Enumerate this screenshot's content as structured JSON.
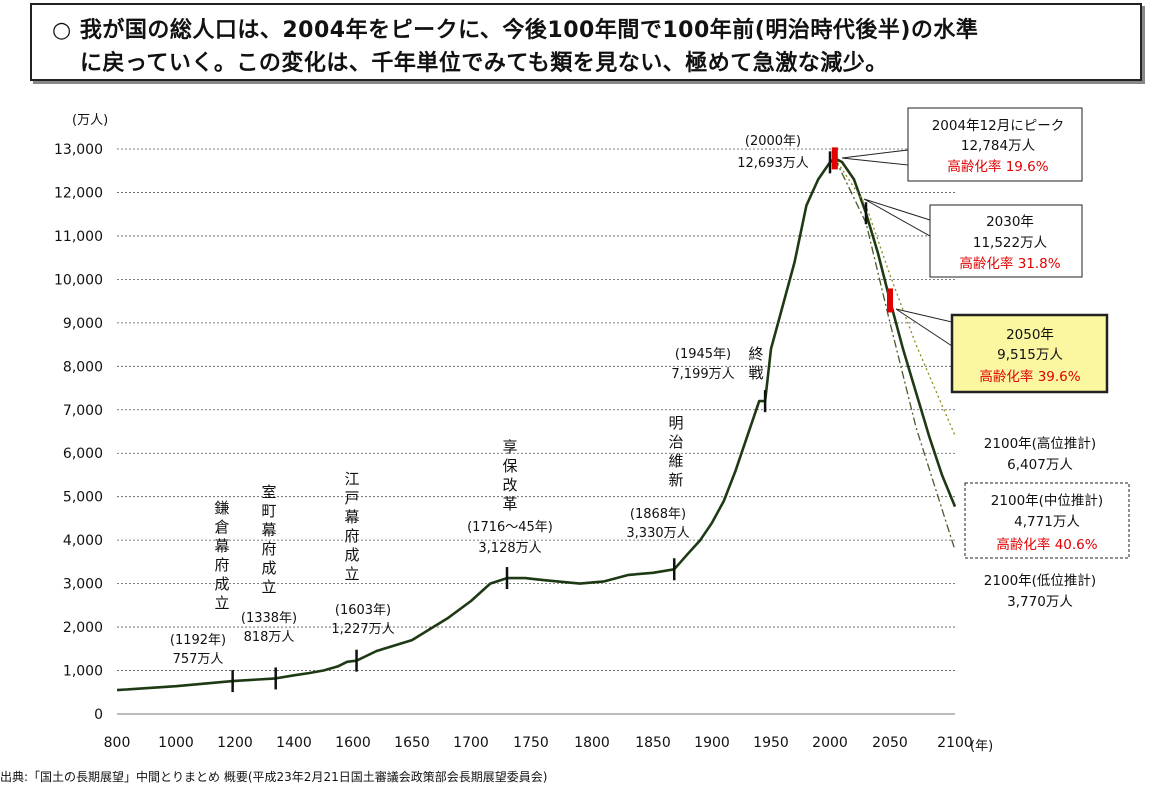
{
  "title": {
    "line1": "○ 我が国の総人口は、2004年をピークに、今後100年間で100年前(明治時代後半)の水準",
    "line2": "に戻っていく。この変化は、千年単位でみても類を見ない、極めて急激な減少。"
  },
  "source": "出典:「国土の長期展望」中間とりまとめ 概要(平成23年2月21日国土審議会政策部会長期展望委員会)",
  "chart_data": {
    "type": "line",
    "ylabel": "(万人)",
    "xunit": "(年)",
    "xlim": [
      800,
      2100
    ],
    "ylim": [
      0,
      13000
    ],
    "grid": true,
    "x_ticks": [
      "800",
      "1000",
      "1200",
      "1400",
      "1600",
      "1650",
      "1700",
      "1750",
      "1800",
      "1850",
      "1900",
      "1950",
      "2000",
      "2050",
      "2100"
    ],
    "y_ticks": [
      "0",
      "1,000",
      "2,000",
      "3,000",
      "4,000",
      "5,000",
      "6,000",
      "7,000",
      "8,000",
      "9,000",
      "10,000",
      "11,000",
      "12,000",
      "13,000"
    ],
    "series": [
      {
        "key": "actual",
        "color": "#1e3a14",
        "x": [
          800,
          1000,
          1192,
          1338,
          1400,
          1450,
          1500,
          1550,
          1580,
          1603,
          1620,
          1650,
          1680,
          1700,
          1716,
          1730,
          1745,
          1760,
          1790,
          1810,
          1830,
          1850,
          1868,
          1880,
          1890,
          1900,
          1910,
          1920,
          1930,
          1940,
          1945,
          1950,
          1960,
          1970,
          1980,
          1990,
          2000,
          2004
        ],
        "values": [
          551,
          640,
          757,
          818,
          890,
          940,
          1000,
          1100,
          1200,
          1227,
          1450,
          1700,
          2200,
          2600,
          3000,
          3128,
          3128,
          3080,
          3000,
          3050,
          3200,
          3250,
          3330,
          3700,
          4000,
          4400,
          4900,
          5600,
          6400,
          7200,
          7199,
          8400,
          9400,
          10400,
          11700,
          12300,
          12693,
          12784
        ]
      },
      {
        "key": "medium",
        "color": "#1e3a14",
        "x": [
          2004,
          2010,
          2020,
          2030,
          2040,
          2050,
          2060,
          2070,
          2080,
          2090,
          2100
        ],
        "values": [
          12784,
          12700,
          12300,
          11522,
          10600,
          9515,
          8400,
          7400,
          6400,
          5500,
          4771
        ]
      },
      {
        "key": "high",
        "color": "#8c8a1c",
        "x": [
          2004,
          2030,
          2050,
          2070,
          2100
        ],
        "values": [
          12784,
          11700,
          10100,
          8500,
          6407
        ]
      },
      {
        "key": "low",
        "color": "#4a5a2a",
        "x": [
          2004,
          2030,
          2050,
          2070,
          2100
        ],
        "values": [
          12784,
          11300,
          9000,
          6600,
          3770
        ]
      }
    ],
    "annotations": {
      "kamakura": {
        "label": "鎌倉幕府成立",
        "year": "(1192年)",
        "pop": "757万人"
      },
      "muromachi": {
        "label": "室町幕府成立",
        "year": "(1338年)",
        "pop": "818万人"
      },
      "edo": {
        "label": "江戸幕府成立",
        "year": "(1603年)",
        "pop": "1,227万人"
      },
      "kyoho": {
        "label": "享保改革",
        "year": "(1716〜45年)",
        "pop": "3,128万人"
      },
      "meiji": {
        "label": "明治維新",
        "year": "(1868年)",
        "pop": "3,330万人"
      },
      "war": {
        "label": "終戦",
        "year": "(1945年)",
        "pop": "7,199万人"
      },
      "y2000": {
        "year": "(2000年)",
        "pop": "12,693万人"
      },
      "peak": {
        "l1": "2004年12月にピーク",
        "l2": "12,784万人",
        "l3": "高齢化率 19.6%"
      },
      "y2030": {
        "l1": "2030年",
        "l2": "11,522万人",
        "l3": "高齢化率 31.8%"
      },
      "y2050": {
        "l1": "2050年",
        "l2": "9,515万人",
        "l3": "高齢化率 39.6%"
      },
      "high2100": {
        "l1": "2100年(高位推計)",
        "l2": "6,407万人"
      },
      "med2100": {
        "l1": "2100年(中位推計)",
        "l2": "4,771万人",
        "l3": "高齢化率 40.6%"
      },
      "low2100": {
        "l1": "2100年(低位推計)",
        "l2": "3,770万人"
      }
    }
  }
}
